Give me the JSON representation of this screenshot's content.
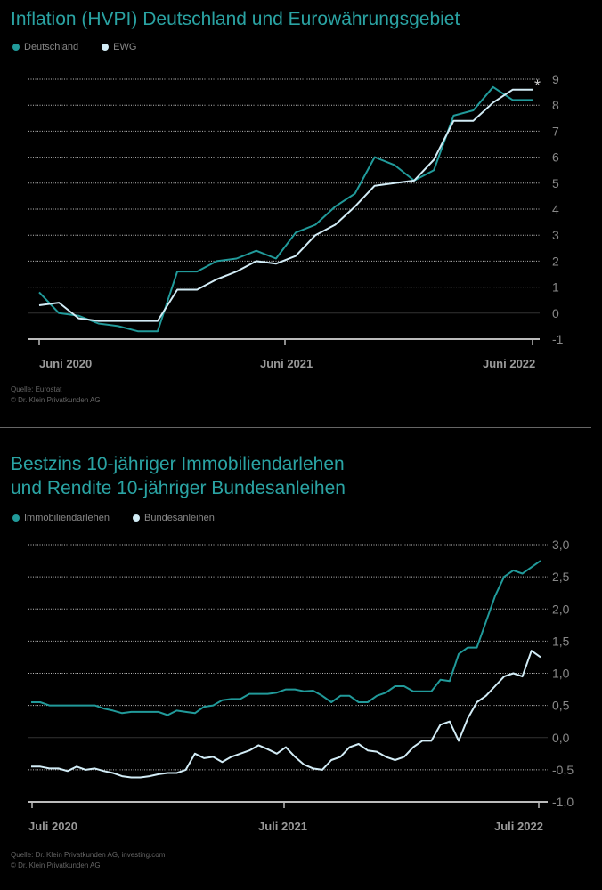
{
  "colors": {
    "teal": "#219a9a",
    "light": "#d2ecf6",
    "grid": "#aaaaaa",
    "text": "#888888"
  },
  "chart_data": [
    {
      "type": "line",
      "title": "Inflation (HVPI) Deutschland und Eurowährungsgebiet",
      "xlabel": "",
      "ylabel": "",
      "x_tick_labels": [
        "Juni 2020",
        "Juni 2021",
        "Juni 2022"
      ],
      "x_tick_index": [
        0,
        12,
        24
      ],
      "y_ticks": [
        9,
        8,
        7,
        6,
        5,
        4,
        3,
        2,
        1,
        0,
        -1
      ],
      "y_tick_labels": [
        "9",
        "8",
        "7",
        "6",
        "5",
        "4",
        "3",
        "2",
        "1",
        "0",
        "-1"
      ],
      "ylim": [
        -1,
        9
      ],
      "grid": true,
      "legend_position": "top-left",
      "annotation": "*",
      "series": [
        {
          "name": "Deutschland",
          "color": "#219a9a",
          "values": [
            0.8,
            0.0,
            -0.1,
            -0.4,
            -0.5,
            -0.7,
            -0.7,
            1.6,
            1.6,
            2.0,
            2.1,
            2.4,
            2.1,
            3.1,
            3.4,
            4.1,
            4.6,
            6.0,
            5.7,
            5.1,
            5.5,
            7.6,
            7.8,
            8.7,
            8.2,
            8.2
          ]
        },
        {
          "name": "EWG",
          "color": "#d2ecf6",
          "values": [
            0.3,
            0.4,
            -0.2,
            -0.3,
            -0.3,
            -0.3,
            -0.3,
            0.9,
            0.9,
            1.3,
            1.6,
            2.0,
            1.9,
            2.2,
            3.0,
            3.4,
            4.1,
            4.9,
            5.0,
            5.1,
            5.9,
            7.4,
            7.4,
            8.1,
            8.6,
            8.6
          ]
        }
      ],
      "source": [
        "Quelle: Eurostat",
        "© Dr. Klein Privatkunden AG"
      ]
    },
    {
      "type": "line",
      "title": "Bestzins 10-jähriger Immobiliendarlehen",
      "title2": "und Rendite 10-jähriger Bundesanleihen",
      "xlabel": "",
      "ylabel": "",
      "x_tick_labels": [
        "Juli 2020",
        "Juli 2021",
        "Juli 2022"
      ],
      "x_tick_index": [
        0,
        28,
        56
      ],
      "y_ticks": [
        3.0,
        2.5,
        2.0,
        1.5,
        1.0,
        0.5,
        0.0,
        -0.5,
        -1.0
      ],
      "y_tick_labels": [
        "3,0",
        "2,5",
        "2,0",
        "1,5",
        "1,0",
        "0,5",
        "0,0",
        "-0,5",
        "-1,0"
      ],
      "ylim": [
        -1.0,
        3.0
      ],
      "grid": true,
      "legend_position": "top-left",
      "series": [
        {
          "name": "Immobiliendarlehen",
          "color": "#219a9a",
          "values": [
            0.55,
            0.55,
            0.5,
            0.5,
            0.5,
            0.5,
            0.5,
            0.5,
            0.45,
            0.42,
            0.38,
            0.4,
            0.4,
            0.4,
            0.4,
            0.35,
            0.42,
            0.4,
            0.38,
            0.48,
            0.5,
            0.58,
            0.6,
            0.6,
            0.68,
            0.68,
            0.68,
            0.7,
            0.75,
            0.75,
            0.72,
            0.73,
            0.65,
            0.55,
            0.65,
            0.65,
            0.55,
            0.55,
            0.65,
            0.7,
            0.8,
            0.8,
            0.72,
            0.72,
            0.72,
            0.9,
            0.88,
            1.3,
            1.4,
            1.4,
            1.8,
            2.2,
            2.5,
            2.6,
            2.55,
            2.65,
            2.75
          ]
        },
        {
          "name": "Bundesanleihen",
          "color": "#d2ecf6",
          "values": [
            -0.45,
            -0.45,
            -0.48,
            -0.48,
            -0.52,
            -0.45,
            -0.5,
            -0.48,
            -0.52,
            -0.55,
            -0.6,
            -0.62,
            -0.62,
            -0.6,
            -0.57,
            -0.55,
            -0.55,
            -0.5,
            -0.25,
            -0.32,
            -0.3,
            -0.38,
            -0.3,
            -0.25,
            -0.2,
            -0.12,
            -0.18,
            -0.25,
            -0.15,
            -0.3,
            -0.42,
            -0.48,
            -0.5,
            -0.35,
            -0.3,
            -0.15,
            -0.1,
            -0.2,
            -0.22,
            -0.3,
            -0.35,
            -0.3,
            -0.15,
            -0.05,
            -0.05,
            0.2,
            0.25,
            -0.05,
            0.3,
            0.55,
            0.65,
            0.8,
            0.95,
            1.0,
            0.95,
            1.35,
            1.25
          ]
        }
      ],
      "source": [
        "Quelle: Dr. Klein Privatkunden AG, investing.com",
        "© Dr. Klein Privatkunden AG"
      ]
    }
  ]
}
